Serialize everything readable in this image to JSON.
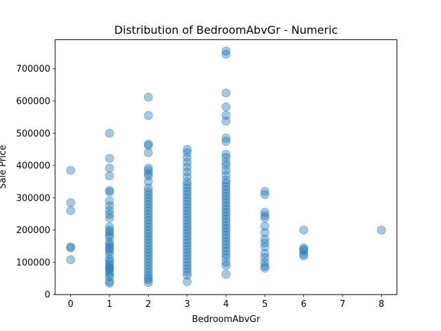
{
  "chart_data": {
    "type": "scatter",
    "title": "Distribution of BedroomAbvGr - Numeric",
    "xlabel": "BedroomAbvGr",
    "ylabel": "Sale Price",
    "xlim": [
      -0.4,
      8.4
    ],
    "ylim": [
      0,
      790000
    ],
    "xticks": [
      0,
      1,
      2,
      3,
      4,
      5,
      6,
      7,
      8
    ],
    "yticks": [
      0,
      100000,
      200000,
      300000,
      400000,
      500000,
      600000,
      700000
    ],
    "grid": false,
    "marker_color": "#1f77b4",
    "marker_alpha": 0.4,
    "points": [
      [
        0,
        385000
      ],
      [
        0,
        285000
      ],
      [
        0,
        260000
      ],
      [
        0,
        148000
      ],
      [
        0,
        145000
      ],
      [
        0,
        108000
      ],
      [
        1,
        500000
      ],
      [
        1,
        422000
      ],
      [
        1,
        392000
      ],
      [
        1,
        368000
      ],
      [
        1,
        323000
      ],
      [
        1,
        318000
      ],
      [
        1,
        290000
      ],
      [
        1,
        275000
      ],
      [
        1,
        260000
      ],
      [
        1,
        248000
      ],
      [
        1,
        237000
      ],
      [
        1,
        210000
      ],
      [
        1,
        200000
      ],
      [
        1,
        194000
      ],
      [
        1,
        185000
      ],
      [
        1,
        178000
      ],
      [
        1,
        162000
      ],
      [
        1,
        155000
      ],
      [
        1,
        148000
      ],
      [
        1,
        142000
      ],
      [
        1,
        135000
      ],
      [
        1,
        125000
      ],
      [
        1,
        110000
      ],
      [
        1,
        103000
      ],
      [
        1,
        95000
      ],
      [
        1,
        88000
      ],
      [
        1,
        82000
      ],
      [
        1,
        78000
      ],
      [
        1,
        70000
      ],
      [
        1,
        62000
      ],
      [
        1,
        55000
      ],
      [
        1,
        40000
      ],
      [
        1,
        35000
      ],
      [
        2,
        612000
      ],
      [
        2,
        555000
      ],
      [
        2,
        467000
      ],
      [
        2,
        462000
      ],
      [
        2,
        440000
      ],
      [
        2,
        392000
      ],
      [
        2,
        385000
      ],
      [
        2,
        375000
      ],
      [
        2,
        368000
      ],
      [
        2,
        350000
      ],
      [
        2,
        330000
      ],
      [
        2,
        320000
      ],
      [
        2,
        310000
      ],
      [
        2,
        300000
      ],
      [
        2,
        290000
      ],
      [
        2,
        280000
      ],
      [
        2,
        270000
      ],
      [
        2,
        260000
      ],
      [
        2,
        250000
      ],
      [
        2,
        240000
      ],
      [
        2,
        230000
      ],
      [
        2,
        220000
      ],
      [
        2,
        210000
      ],
      [
        2,
        200000
      ],
      [
        2,
        190000
      ],
      [
        2,
        180000
      ],
      [
        2,
        170000
      ],
      [
        2,
        160000
      ],
      [
        2,
        150000
      ],
      [
        2,
        140000
      ],
      [
        2,
        130000
      ],
      [
        2,
        120000
      ],
      [
        2,
        110000
      ],
      [
        2,
        100000
      ],
      [
        2,
        90000
      ],
      [
        2,
        80000
      ],
      [
        2,
        70000
      ],
      [
        2,
        60000
      ],
      [
        2,
        52000
      ],
      [
        2,
        45000
      ],
      [
        2,
        37000
      ],
      [
        3,
        450000
      ],
      [
        3,
        440000
      ],
      [
        3,
        425000
      ],
      [
        3,
        410000
      ],
      [
        3,
        395000
      ],
      [
        3,
        380000
      ],
      [
        3,
        365000
      ],
      [
        3,
        350000
      ],
      [
        3,
        340000
      ],
      [
        3,
        330000
      ],
      [
        3,
        320000
      ],
      [
        3,
        310000
      ],
      [
        3,
        300000
      ],
      [
        3,
        290000
      ],
      [
        3,
        280000
      ],
      [
        3,
        270000
      ],
      [
        3,
        260000
      ],
      [
        3,
        250000
      ],
      [
        3,
        240000
      ],
      [
        3,
        230000
      ],
      [
        3,
        220000
      ],
      [
        3,
        210000
      ],
      [
        3,
        200000
      ],
      [
        3,
        190000
      ],
      [
        3,
        180000
      ],
      [
        3,
        170000
      ],
      [
        3,
        160000
      ],
      [
        3,
        150000
      ],
      [
        3,
        140000
      ],
      [
        3,
        130000
      ],
      [
        3,
        120000
      ],
      [
        3,
        110000
      ],
      [
        3,
        100000
      ],
      [
        3,
        90000
      ],
      [
        3,
        80000
      ],
      [
        3,
        70000
      ],
      [
        3,
        60000
      ],
      [
        3,
        40000
      ],
      [
        4,
        755000
      ],
      [
        4,
        745000
      ],
      [
        4,
        625000
      ],
      [
        4,
        582000
      ],
      [
        4,
        556000
      ],
      [
        4,
        538000
      ],
      [
        4,
        485000
      ],
      [
        4,
        475000
      ],
      [
        4,
        435000
      ],
      [
        4,
        425000
      ],
      [
        4,
        410000
      ],
      [
        4,
        400000
      ],
      [
        4,
        385000
      ],
      [
        4,
        370000
      ],
      [
        4,
        355000
      ],
      [
        4,
        345000
      ],
      [
        4,
        335000
      ],
      [
        4,
        325000
      ],
      [
        4,
        315000
      ],
      [
        4,
        305000
      ],
      [
        4,
        295000
      ],
      [
        4,
        285000
      ],
      [
        4,
        275000
      ],
      [
        4,
        265000
      ],
      [
        4,
        255000
      ],
      [
        4,
        245000
      ],
      [
        4,
        235000
      ],
      [
        4,
        225000
      ],
      [
        4,
        215000
      ],
      [
        4,
        205000
      ],
      [
        4,
        195000
      ],
      [
        4,
        185000
      ],
      [
        4,
        175000
      ],
      [
        4,
        165000
      ],
      [
        4,
        155000
      ],
      [
        4,
        145000
      ],
      [
        4,
        135000
      ],
      [
        4,
        125000
      ],
      [
        4,
        115000
      ],
      [
        4,
        100000
      ],
      [
        4,
        90000
      ],
      [
        4,
        63000
      ],
      [
        5,
        320000
      ],
      [
        5,
        310000
      ],
      [
        5,
        255000
      ],
      [
        5,
        245000
      ],
      [
        5,
        238000
      ],
      [
        5,
        212000
      ],
      [
        5,
        192000
      ],
      [
        5,
        172000
      ],
      [
        5,
        160000
      ],
      [
        5,
        148000
      ],
      [
        5,
        128000
      ],
      [
        5,
        115000
      ],
      [
        5,
        100000
      ],
      [
        5,
        88000
      ],
      [
        5,
        82000
      ],
      [
        6,
        200000
      ],
      [
        6,
        145000
      ],
      [
        6,
        140000
      ],
      [
        6,
        135000
      ],
      [
        6,
        125000
      ],
      [
        6,
        120000
      ],
      [
        8,
        200000
      ]
    ]
  }
}
